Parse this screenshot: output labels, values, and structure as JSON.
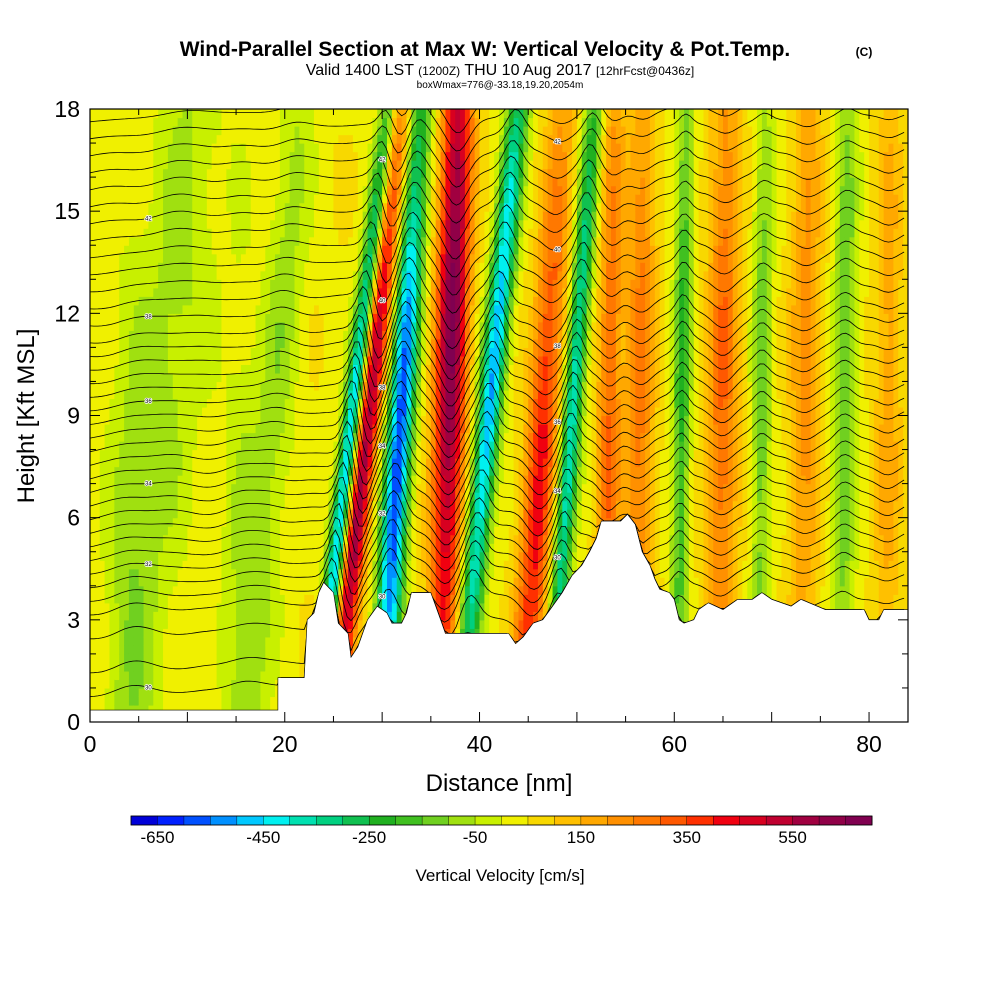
{
  "chart_data": {
    "type": "heatmap",
    "title": "Wind-Parallel Section at Max W: Vertical Velocity & Pot.Temp.",
    "title_mark": "(C)",
    "subtitle": {
      "valid": "Valid 1400 LST",
      "utc": "(1200Z)",
      "date": "THU 10 Aug 2017",
      "forecast": "[12hrFcst@0436z]"
    },
    "box_info": "boxWmax=776@-33.18,19.20,2054m",
    "xlabel": "Distance [nm]",
    "ylabel": "Height [Kft MSL]",
    "xlim": [
      0,
      84
    ],
    "ylim": [
      0,
      18
    ],
    "x_ticks": [
      0,
      20,
      40,
      60,
      80
    ],
    "y_ticks": [
      0,
      3,
      6,
      9,
      12,
      15,
      18
    ],
    "x_tick_labels": [
      "0",
      "20",
      "40",
      "60",
      "80"
    ],
    "y_tick_labels": [
      "0",
      "3",
      "6",
      "9",
      "12",
      "15",
      "18"
    ],
    "colorbar": {
      "label": "Vertical Velocity [cm/s]",
      "min": -700,
      "max": 700,
      "step": 50,
      "tick_values": [
        -650,
        -450,
        -250,
        -50,
        150,
        350,
        550
      ],
      "tick_labels": [
        "-650",
        "-450",
        "-250",
        "-50",
        "150",
        "350",
        "550"
      ],
      "colors": [
        "#0000d8",
        "#0020ff",
        "#0050ff",
        "#0090ff",
        "#00c8ff",
        "#00f0f0",
        "#00e0b0",
        "#00d080",
        "#10c050",
        "#20b020",
        "#40c020",
        "#70d020",
        "#a0e010",
        "#c8f000",
        "#f0f000",
        "#f8d800",
        "#ffc000",
        "#ffa800",
        "#ff9000",
        "#ff7800",
        "#ff5800",
        "#ff3000",
        "#f00010",
        "#d80020",
        "#c00030",
        "#a00040",
        "#900048",
        "#800050"
      ]
    },
    "terrain_kft": [
      [
        0,
        0.35
      ],
      [
        18,
        0.35
      ],
      [
        19.3,
        0.35
      ],
      [
        19.3,
        1.3
      ],
      [
        22,
        1.3
      ],
      [
        22.3,
        3.0
      ],
      [
        23,
        3.2
      ],
      [
        23.5,
        3.8
      ],
      [
        24,
        4.1
      ],
      [
        25,
        3.8
      ],
      [
        25.5,
        2.9
      ],
      [
        26.5,
        2.6
      ],
      [
        26.8,
        1.9
      ],
      [
        27.5,
        2.2
      ],
      [
        28.5,
        3.0
      ],
      [
        29.5,
        3.4
      ],
      [
        30.5,
        3.2
      ],
      [
        31,
        2.9
      ],
      [
        32,
        2.9
      ],
      [
        32.5,
        3.2
      ],
      [
        33,
        3.8
      ],
      [
        35,
        3.8
      ],
      [
        35.5,
        3.4
      ],
      [
        36,
        3.0
      ],
      [
        36.5,
        2.6
      ],
      [
        42,
        2.6
      ],
      [
        43,
        2.6
      ],
      [
        43.7,
        2.3
      ],
      [
        44.5,
        2.5
      ],
      [
        45.5,
        2.9
      ],
      [
        46.5,
        3.0
      ],
      [
        47.5,
        3.4
      ],
      [
        48.5,
        3.8
      ],
      [
        49.5,
        4.3
      ],
      [
        50.5,
        4.6
      ],
      [
        51.3,
        5.0
      ],
      [
        52,
        5.4
      ],
      [
        52.5,
        5.9
      ],
      [
        54.5,
        5.9
      ],
      [
        55.2,
        6.1
      ],
      [
        56,
        5.8
      ],
      [
        56.7,
        5.0
      ],
      [
        57.5,
        4.6
      ],
      [
        58,
        4.2
      ],
      [
        58.5,
        3.9
      ],
      [
        59.5,
        3.8
      ],
      [
        60,
        3.6
      ],
      [
        60.5,
        3.0
      ],
      [
        61,
        2.9
      ],
      [
        62,
        3.0
      ],
      [
        62.5,
        3.3
      ],
      [
        63.5,
        3.5
      ],
      [
        65,
        3.3
      ],
      [
        66.5,
        3.6
      ],
      [
        68,
        3.6
      ],
      [
        69,
        3.8
      ],
      [
        70,
        3.6
      ],
      [
        72,
        3.4
      ],
      [
        73,
        3.6
      ],
      [
        75.5,
        3.3
      ],
      [
        79.5,
        3.3
      ],
      [
        80,
        3.0
      ],
      [
        81,
        3.0
      ],
      [
        81.5,
        3.3
      ],
      [
        84,
        3.3
      ]
    ],
    "w_features": [
      {
        "x": 27.8,
        "center_kft": 7.0,
        "amplitude": 560,
        "width_nm": 1.2,
        "tilt_nm_per_kft": 0.38
      },
      {
        "x": 26.2,
        "center_kft": 7.0,
        "amplitude": -580,
        "width_nm": 0.95,
        "tilt_nm_per_kft": 0.4
      },
      {
        "x": 31.6,
        "center_kft": 7.5,
        "amplitude": -640,
        "width_nm": 1.3,
        "tilt_nm_per_kft": 0.22
      },
      {
        "x": 37.2,
        "center_kft": 12.0,
        "amplitude": 620,
        "width_nm": 1.6,
        "tilt_nm_per_kft": 0.1
      },
      {
        "x": 41.3,
        "center_kft": 10.0,
        "amplitude": -540,
        "width_nm": 1.2,
        "tilt_nm_per_kft": 0.33
      },
      {
        "x": 46.0,
        "center_kft": 6.5,
        "amplitude": 380,
        "width_nm": 1.6,
        "tilt_nm_per_kft": 0.22
      },
      {
        "x": 49.5,
        "center_kft": 9.0,
        "amplitude": -440,
        "width_nm": 1.0,
        "tilt_nm_per_kft": 0.25
      },
      {
        "x": 53.3,
        "center_kft": 9.0,
        "amplitude": 260,
        "width_nm": 1.2,
        "tilt_nm_per_kft": 0.06
      },
      {
        "x": 56.5,
        "center_kft": 10.0,
        "amplitude": 230,
        "width_nm": 1.5,
        "tilt_nm_per_kft": 0.04
      },
      {
        "x": 60.8,
        "center_kft": 10.0,
        "amplitude": -260,
        "width_nm": 0.9,
        "tilt_nm_per_kft": 0.05
      },
      {
        "x": 65.0,
        "center_kft": 10.0,
        "amplitude": 260,
        "width_nm": 1.6,
        "tilt_nm_per_kft": 0.04
      },
      {
        "x": 69.0,
        "center_kft": 10.0,
        "amplitude": -180,
        "width_nm": 1.0,
        "tilt_nm_per_kft": 0.03
      },
      {
        "x": 73.5,
        "center_kft": 11.0,
        "amplitude": 180,
        "width_nm": 1.6,
        "tilt_nm_per_kft": 0.03
      },
      {
        "x": 77.5,
        "center_kft": 10.0,
        "amplitude": -190,
        "width_nm": 1.2,
        "tilt_nm_per_kft": 0.03
      },
      {
        "x": 82.0,
        "center_kft": 10.0,
        "amplitude": 140,
        "width_nm": 1.4,
        "tilt_nm_per_kft": 0.02
      },
      {
        "x": 9.0,
        "center_kft": 13.0,
        "amplitude": -110,
        "width_nm": 3.5,
        "tilt_nm_per_kft": 0.25
      },
      {
        "x": 19.5,
        "center_kft": 11.0,
        "amplitude": -120,
        "width_nm": 2.0,
        "tilt_nm_per_kft": 0.25
      },
      {
        "x": 4.0,
        "center_kft": 1.5,
        "amplitude": -110,
        "width_nm": 2.5,
        "tilt_nm_per_kft": 0.0
      },
      {
        "x": 15.5,
        "center_kft": 1.5,
        "amplitude": -100,
        "width_nm": 2.0,
        "tilt_nm_per_kft": 0.0
      }
    ],
    "theta_contours": {
      "levels_kft": [
        0.8,
        1.5,
        2.5,
        3.2,
        3.6,
        4.0,
        4.4,
        4.8,
        5.2,
        5.6,
        6.0,
        6.4,
        6.8,
        7.2,
        7.6,
        8.0,
        8.4,
        8.8,
        9.2,
        9.6,
        10.0,
        10.4,
        10.8,
        11.2,
        11.7,
        12.2,
        12.7,
        13.2,
        13.7,
        14.2,
        14.7,
        15.2,
        15.7,
        16.2,
        16.7,
        17.2,
        17.7
      ],
      "labels": [
        "30",
        "32",
        "34",
        "36",
        "38",
        "40",
        "42",
        "44"
      ]
    }
  }
}
